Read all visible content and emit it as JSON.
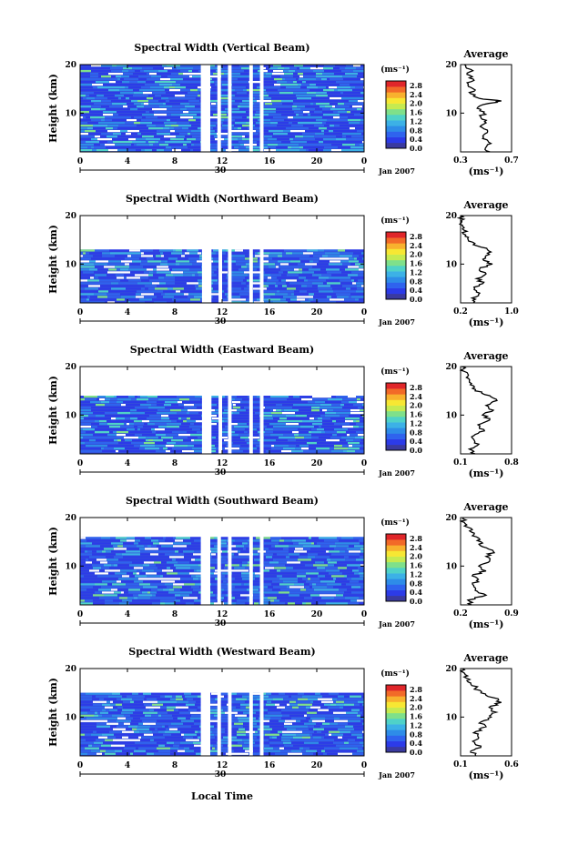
{
  "figure": {
    "x_axis_label": "Local Time",
    "date_label": "Jan 2007",
    "day_label": "30",
    "avg_title": "Average",
    "avg_unit": "(ms⁻¹)",
    "colorbar_unit": "(ms⁻¹)",
    "height_label": "Height (km)"
  },
  "colors": {
    "scale": [
      "#3a3aa0",
      "#2c3be8",
      "#2f63ee",
      "#2e8ce8",
      "#3cb1e6",
      "#4fd2c8",
      "#7fe08a",
      "#c6ea50",
      "#f7e733",
      "#f8b12e",
      "#f26a28",
      "#e0262a"
    ],
    "background_fill": "#3550d8"
  },
  "chart_data": [
    {
      "type": "heatmap",
      "title": "Spectral Width (Vertical Beam)",
      "xlabel": "",
      "ylabel": "Height (km)",
      "xlim": [
        0,
        24
      ],
      "ylim": [
        2,
        20
      ],
      "x_ticks": [
        "0",
        "4",
        "8",
        "12",
        "16",
        "20",
        "0"
      ],
      "y_ticks": [
        "10",
        "20"
      ],
      "colorbar": {
        "unit": "(ms⁻¹)",
        "ticks": [
          "0.0",
          "0.4",
          "0.8",
          "1.2",
          "1.6",
          "2.0",
          "2.4",
          "2.8"
        ],
        "range": [
          0,
          3.0
        ]
      },
      "data_top_km": 20,
      "gaps_hours": [
        [
          10.2,
          11.0
        ],
        [
          11.6,
          11.9
        ],
        [
          12.5,
          12.8
        ],
        [
          14.3,
          14.6
        ],
        [
          15.2,
          15.5
        ]
      ],
      "average": {
        "xlim": [
          0.3,
          0.7
        ],
        "ticks": [
          "0.3",
          "0.7"
        ],
        "ylim": [
          2,
          20
        ],
        "y_ticks": [
          "10",
          "20"
        ],
        "profile": [
          [
            2,
            0.53
          ],
          [
            3,
            0.5
          ],
          [
            4,
            0.52
          ],
          [
            5,
            0.48
          ],
          [
            6,
            0.51
          ],
          [
            7,
            0.47
          ],
          [
            8,
            0.5
          ],
          [
            9,
            0.46
          ],
          [
            10,
            0.48
          ],
          [
            11,
            0.43
          ],
          [
            12,
            0.52
          ],
          [
            12.5,
            0.62
          ],
          [
            13,
            0.45
          ],
          [
            14,
            0.38
          ],
          [
            15,
            0.4
          ],
          [
            16,
            0.36
          ],
          [
            17,
            0.4
          ],
          [
            18,
            0.35
          ],
          [
            19,
            0.38
          ],
          [
            20,
            0.33
          ]
        ]
      }
    },
    {
      "type": "heatmap",
      "title": "Spectral Width (Northward Beam)",
      "xlabel": "",
      "ylabel": "Height (km)",
      "xlim": [
        0,
        24
      ],
      "ylim": [
        2,
        20
      ],
      "x_ticks": [
        "0",
        "4",
        "8",
        "12",
        "16",
        "20",
        "0"
      ],
      "y_ticks": [
        "10",
        "20"
      ],
      "colorbar": {
        "unit": "(ms⁻¹)",
        "ticks": [
          "0.0",
          "0.4",
          "0.8",
          "1.2",
          "1.6",
          "2.0",
          "2.4",
          "2.8"
        ],
        "range": [
          0,
          3.0
        ]
      },
      "data_top_km": 13,
      "gaps_hours": [
        [
          10.3,
          11.1
        ],
        [
          11.7,
          12.0
        ],
        [
          12.5,
          12.8
        ],
        [
          14.3,
          14.6
        ],
        [
          15.2,
          15.5
        ]
      ],
      "average": {
        "xlim": [
          0.2,
          1.0
        ],
        "ticks": [
          "0.2",
          "1.0"
        ],
        "ylim": [
          2,
          20
        ],
        "y_ticks": [
          "10",
          "20"
        ],
        "profile": [
          [
            2,
            0.4
          ],
          [
            3,
            0.38
          ],
          [
            4,
            0.5
          ],
          [
            5,
            0.42
          ],
          [
            6,
            0.55
          ],
          [
            7,
            0.45
          ],
          [
            8,
            0.6
          ],
          [
            9,
            0.5
          ],
          [
            10,
            0.7
          ],
          [
            11,
            0.55
          ],
          [
            12,
            0.65
          ],
          [
            13,
            0.62
          ],
          [
            14,
            0.4
          ],
          [
            15,
            0.32
          ],
          [
            16,
            0.28
          ],
          [
            17,
            0.25
          ],
          [
            18,
            0.23
          ],
          [
            19,
            0.21
          ],
          [
            20,
            0.2
          ]
        ]
      }
    },
    {
      "type": "heatmap",
      "title": "Spectral Width (Eastward Beam)",
      "xlabel": "",
      "ylabel": "Height (km)",
      "xlim": [
        0,
        24
      ],
      "ylim": [
        2,
        20
      ],
      "x_ticks": [
        "0",
        "4",
        "8",
        "12",
        "16",
        "20",
        "0"
      ],
      "y_ticks": [
        "10",
        "20"
      ],
      "colorbar": {
        "unit": "(ms⁻¹)",
        "ticks": [
          "0.0",
          "0.4",
          "0.8",
          "1.2",
          "1.6",
          "2.0",
          "2.4",
          "2.8"
        ],
        "range": [
          0,
          3.0
        ]
      },
      "data_top_km": 14,
      "gaps_hours": [
        [
          10.3,
          11.1
        ],
        [
          11.7,
          12.0
        ],
        [
          12.5,
          12.8
        ],
        [
          14.3,
          14.6
        ],
        [
          15.2,
          15.5
        ]
      ],
      "average": {
        "xlim": [
          0.1,
          0.8
        ],
        "ticks": [
          "0.1",
          "0.8"
        ],
        "ylim": [
          2,
          20
        ],
        "y_ticks": [
          "10",
          "20"
        ],
        "profile": [
          [
            2,
            0.3
          ],
          [
            3,
            0.22
          ],
          [
            4,
            0.35
          ],
          [
            5,
            0.28
          ],
          [
            6,
            0.3
          ],
          [
            7,
            0.42
          ],
          [
            8,
            0.34
          ],
          [
            9,
            0.5
          ],
          [
            10,
            0.4
          ],
          [
            11,
            0.55
          ],
          [
            12,
            0.45
          ],
          [
            13,
            0.6
          ],
          [
            14,
            0.5
          ],
          [
            15,
            0.3
          ],
          [
            16,
            0.28
          ],
          [
            17,
            0.22
          ],
          [
            18,
            0.2
          ],
          [
            19,
            0.15
          ],
          [
            20,
            0.12
          ]
        ]
      }
    },
    {
      "type": "heatmap",
      "title": "Spectral Width (Southward Beam)",
      "xlabel": "",
      "ylabel": "Height (km)",
      "xlim": [
        0,
        24
      ],
      "ylim": [
        2,
        20
      ],
      "x_ticks": [
        "0",
        "4",
        "8",
        "12",
        "16",
        "20",
        "0"
      ],
      "y_ticks": [
        "10",
        "20"
      ],
      "colorbar": {
        "unit": "(ms⁻¹)",
        "ticks": [
          "0.0",
          "0.4",
          "0.8",
          "1.2",
          "1.6",
          "2.0",
          "2.4",
          "2.8"
        ],
        "range": [
          0,
          3.0
        ]
      },
      "data_top_km": 16,
      "gaps_hours": [
        [
          10.2,
          11.0
        ],
        [
          11.6,
          11.9
        ],
        [
          12.5,
          12.8
        ],
        [
          14.3,
          14.6
        ],
        [
          15.2,
          15.5
        ]
      ],
      "average": {
        "xlim": [
          0.2,
          0.9
        ],
        "ticks": [
          "0.2",
          "0.9"
        ],
        "ylim": [
          2,
          20
        ],
        "y_ticks": [
          "10",
          "20"
        ],
        "profile": [
          [
            2,
            0.35
          ],
          [
            3,
            0.3
          ],
          [
            4,
            0.55
          ],
          [
            5,
            0.4
          ],
          [
            6,
            0.38
          ],
          [
            7,
            0.42
          ],
          [
            8,
            0.36
          ],
          [
            9,
            0.55
          ],
          [
            10,
            0.45
          ],
          [
            11,
            0.6
          ],
          [
            12,
            0.55
          ],
          [
            13,
            0.65
          ],
          [
            14,
            0.5
          ],
          [
            15,
            0.48
          ],
          [
            16,
            0.42
          ],
          [
            17,
            0.35
          ],
          [
            18,
            0.3
          ],
          [
            19,
            0.25
          ],
          [
            20,
            0.24
          ]
        ]
      }
    },
    {
      "type": "heatmap",
      "title": "Spectral Width (Westward Beam)",
      "xlabel": "Local Time",
      "ylabel": "Height (km)",
      "xlim": [
        0,
        24
      ],
      "ylim": [
        2,
        20
      ],
      "x_ticks": [
        "0",
        "4",
        "8",
        "12",
        "16",
        "20",
        "0"
      ],
      "y_ticks": [
        "10",
        "20"
      ],
      "colorbar": {
        "unit": "(ms⁻¹)",
        "ticks": [
          "0.0",
          "0.4",
          "0.8",
          "1.2",
          "1.6",
          "2.0",
          "2.4",
          "2.8"
        ],
        "range": [
          0,
          3.0
        ]
      },
      "data_top_km": 15,
      "gaps_hours": [
        [
          10.2,
          11.0
        ],
        [
          11.6,
          11.9
        ],
        [
          12.5,
          12.8
        ],
        [
          14.3,
          14.6
        ],
        [
          15.2,
          15.5
        ]
      ],
      "average": {
        "xlim": [
          0.1,
          0.6
        ],
        "ticks": [
          "0.1",
          "0.6"
        ],
        "ylim": [
          2,
          20
        ],
        "y_ticks": [
          "10",
          "20"
        ],
        "profile": [
          [
            2,
            0.25
          ],
          [
            3,
            0.2
          ],
          [
            4,
            0.3
          ],
          [
            5,
            0.22
          ],
          [
            6,
            0.27
          ],
          [
            7,
            0.25
          ],
          [
            8,
            0.35
          ],
          [
            9,
            0.3
          ],
          [
            10,
            0.4
          ],
          [
            11,
            0.45
          ],
          [
            12,
            0.38
          ],
          [
            13,
            0.5
          ],
          [
            14,
            0.42
          ],
          [
            15,
            0.3
          ],
          [
            16,
            0.25
          ],
          [
            17,
            0.2
          ],
          [
            18,
            0.16
          ],
          [
            19,
            0.14
          ],
          [
            20,
            0.12
          ]
        ]
      }
    }
  ]
}
